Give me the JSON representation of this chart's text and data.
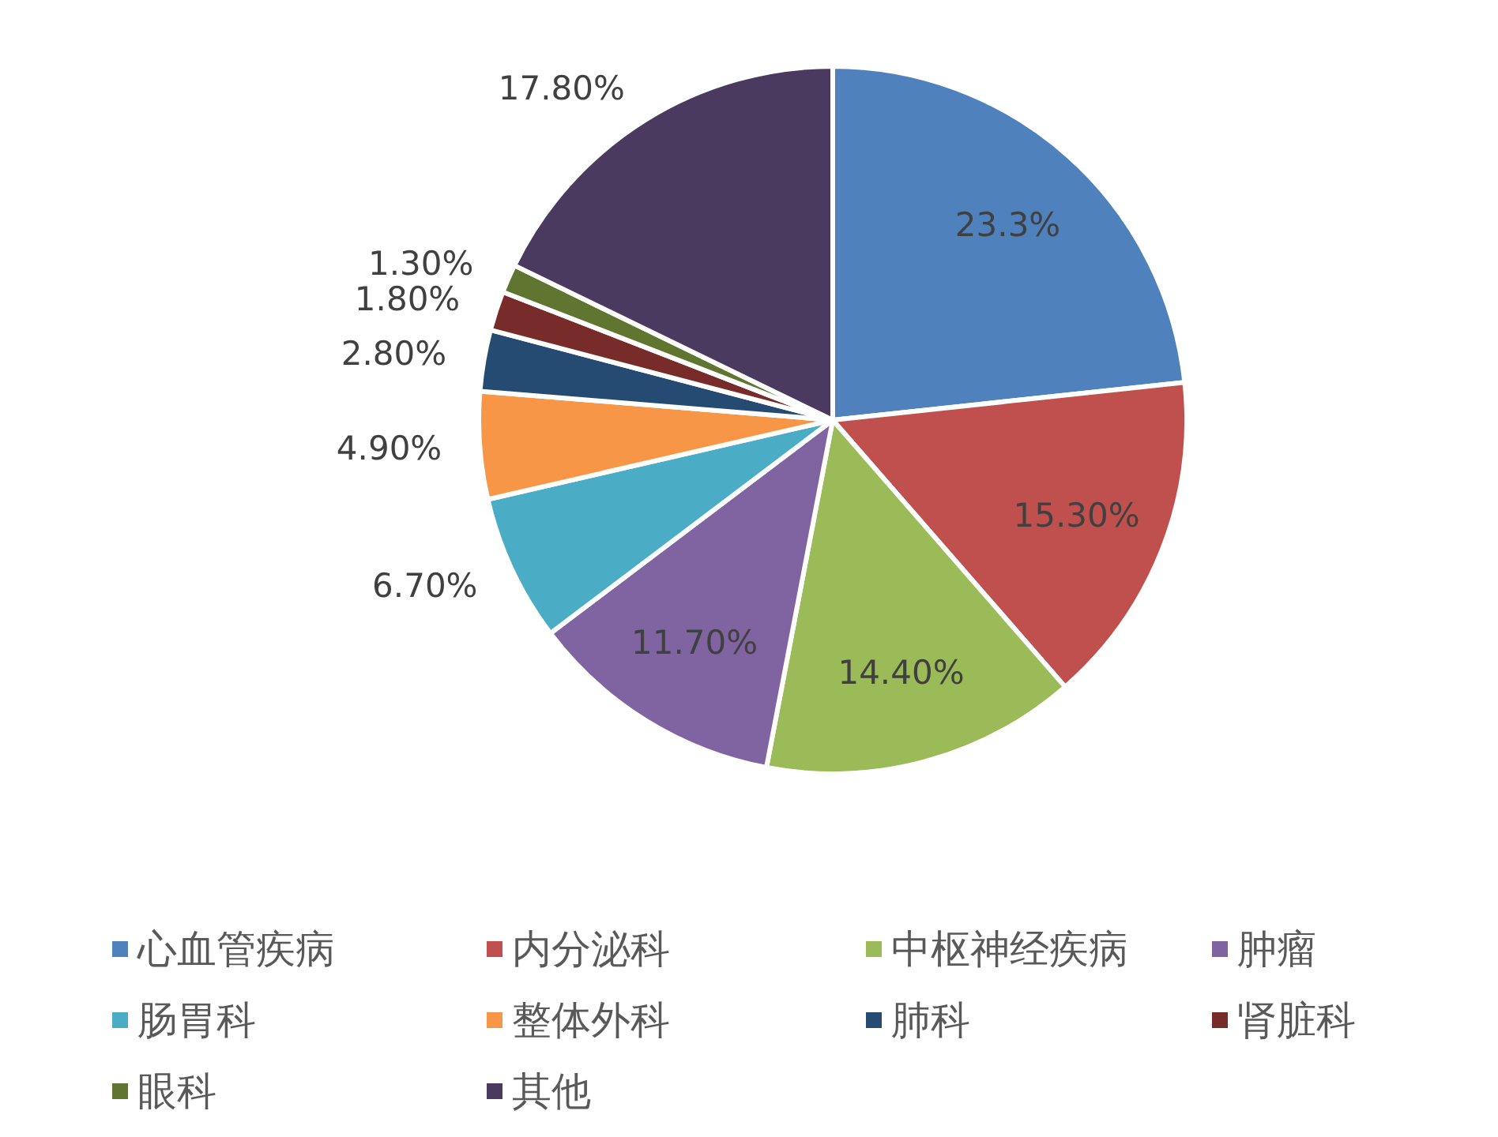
{
  "chart_data": {
    "type": "pie",
    "categories": [
      "心血管疾病",
      "内分泌科",
      "中枢神经疾病",
      "肿瘤",
      "肠胃科",
      "整体外科",
      "肺科",
      "肾脏科",
      "眼科",
      "其他"
    ],
    "values": [
      23.3,
      15.3,
      14.4,
      11.7,
      6.7,
      4.9,
      2.8,
      1.8,
      1.3,
      17.8
    ],
    "colors": [
      "#4f81bd",
      "#c0504d",
      "#9bbb59",
      "#8064a2",
      "#4bacc6",
      "#f79646",
      "#264b73",
      "#772c2a",
      "#5f7530",
      "#4b3a60"
    ],
    "value_labels": [
      "23.3%",
      "15.30%",
      "14.40%",
      "11.70%",
      "6.70%",
      "4.90%",
      "2.80%",
      "1.80%",
      "1.30%",
      "17.80%"
    ],
    "legend": "bottom"
  }
}
